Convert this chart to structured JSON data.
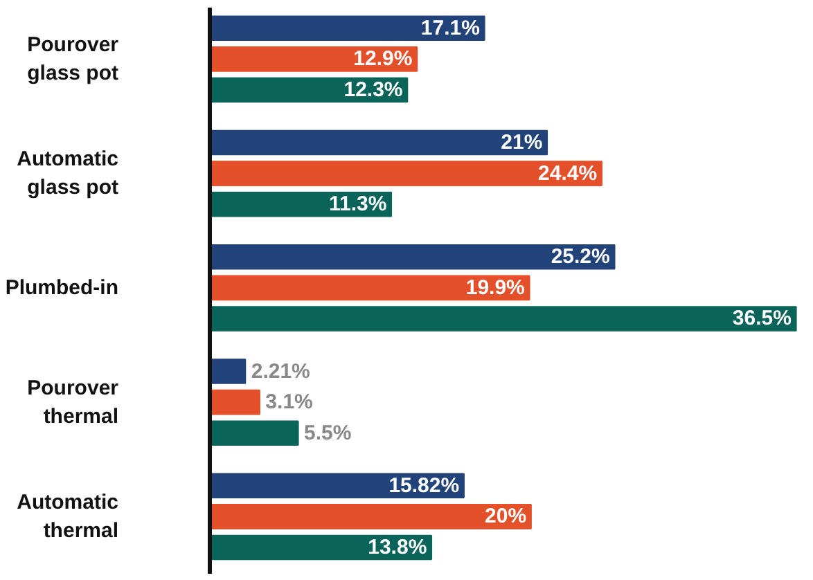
{
  "chart_data": {
    "type": "bar",
    "orientation": "horizontal",
    "categories": [
      "Pourover glass pot",
      "Automatic glass pot",
      "Plumbed-in",
      "Pourover thermal",
      "Automatic thermal"
    ],
    "series": [
      {
        "color": "#22437a",
        "values": [
          17.1,
          21,
          25.2,
          2.21,
          15.82
        ],
        "value_labels": [
          "17.1%",
          "21%",
          "25.2%",
          "2.21%",
          "15.82%"
        ]
      },
      {
        "color": "#e4502a",
        "values": [
          12.9,
          24.4,
          19.9,
          3.1,
          20
        ],
        "value_labels": [
          "12.9%",
          "24.4%",
          "19.9%",
          "3.1%",
          "20%"
        ]
      },
      {
        "color": "#0b6459",
        "values": [
          12.3,
          11.3,
          36.5,
          5.5,
          13.8
        ],
        "value_labels": [
          "12.3%",
          "11.3%",
          "36.5%",
          "5.5%",
          "13.8%"
        ]
      }
    ],
    "data_labels": true
  }
}
